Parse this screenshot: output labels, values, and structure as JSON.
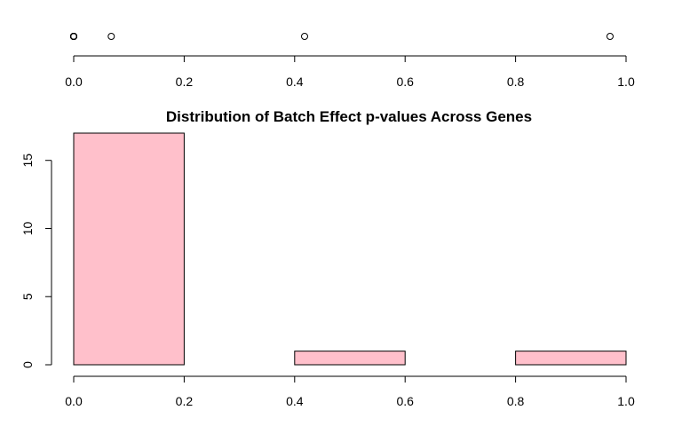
{
  "chart_data": [
    {
      "type": "scatter",
      "description_role": "strip",
      "x": [
        0.0,
        0.0,
        0.0,
        0.0,
        0.0,
        0.0,
        0.0,
        0.0,
        0.0,
        0.0,
        0.0,
        0.0,
        0.0,
        0.0,
        0.0,
        0.0,
        0.068,
        0.418,
        0.971
      ],
      "xlim": [
        0,
        1
      ],
      "x_ticks": [
        "0.0",
        "0.2",
        "0.4",
        "0.6",
        "0.8",
        "1.0"
      ],
      "grid": false
    },
    {
      "type": "bar",
      "title": "Distribution of Batch Effect p-values Across Genes",
      "categories": [
        "0.0-0.2",
        "0.2-0.4",
        "0.4-0.6",
        "0.6-0.8",
        "0.8-1.0"
      ],
      "bin_edges": [
        0,
        0.2,
        0.4,
        0.6,
        0.8,
        1.0
      ],
      "values": [
        17,
        0,
        1,
        0,
        1
      ],
      "xlim": [
        0,
        1
      ],
      "ylim": [
        0,
        17
      ],
      "x_ticks": [
        "0.0",
        "0.2",
        "0.4",
        "0.6",
        "0.8",
        "1.0"
      ],
      "y_ticks": [
        "0",
        "5",
        "10",
        "15"
      ],
      "bar_color": "#FFC0CB",
      "grid": false
    }
  ]
}
